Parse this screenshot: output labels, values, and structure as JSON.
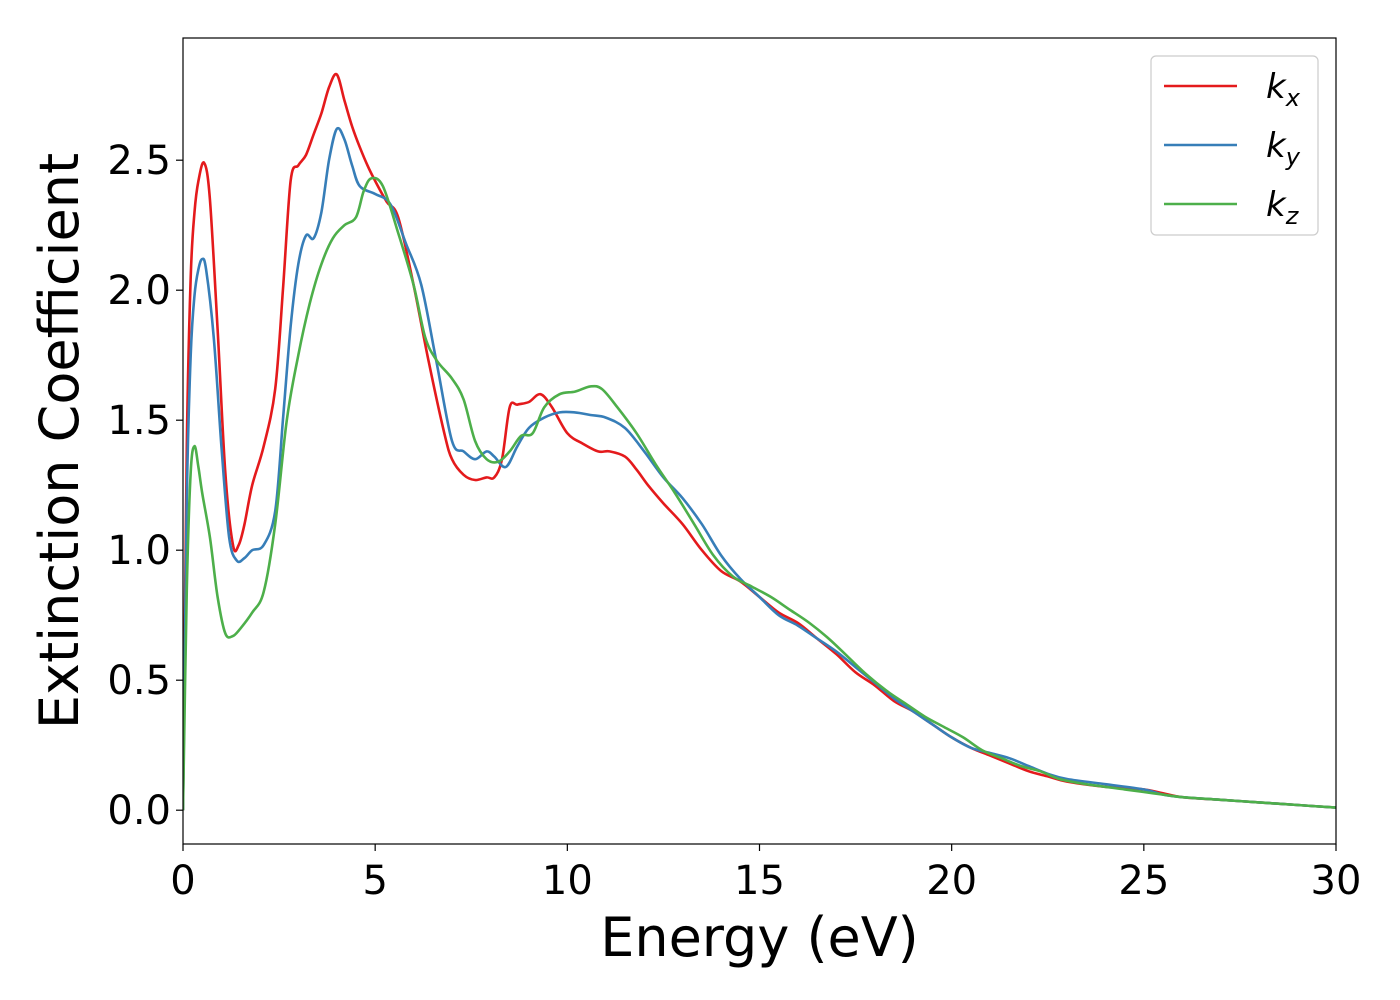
{
  "chart_data": {
    "type": "line",
    "xlabel": "Energy (eV)",
    "ylabel": "Extinction Coefficient",
    "xlim": [
      0,
      30
    ],
    "ylim": [
      -0.13,
      2.97
    ],
    "xticks": [
      0,
      5,
      10,
      15,
      20,
      25,
      30
    ],
    "xtick_labels": [
      "0",
      "5",
      "10",
      "15",
      "20",
      "25",
      "30"
    ],
    "yticks": [
      0.0,
      0.5,
      1.0,
      1.5,
      2.0,
      2.5
    ],
    "ytick_labels": [
      "0.0",
      "0.5",
      "1.0",
      "1.5",
      "2.0",
      "2.5"
    ],
    "grid": false,
    "legend": {
      "position": "top-right"
    },
    "series": [
      {
        "name": "k",
        "name_sub": "x",
        "color": "#e41a1c",
        "x": [
          0,
          0.1,
          0.2,
          0.3,
          0.4,
          0.55,
          0.7,
          0.9,
          1.1,
          1.3,
          1.45,
          1.6,
          1.8,
          2.1,
          2.4,
          2.6,
          2.8,
          3.0,
          3.2,
          3.4,
          3.6,
          3.8,
          4.0,
          4.2,
          4.4,
          4.6,
          4.8,
          5.0,
          5.3,
          5.6,
          6.0,
          6.4,
          6.8,
          7.0,
          7.3,
          7.6,
          7.9,
          8.1,
          8.3,
          8.5,
          8.7,
          9.0,
          9.3,
          9.6,
          10.0,
          10.4,
          10.8,
          11.1,
          11.5,
          11.8,
          12.1,
          12.5,
          13.0,
          13.5,
          14.0,
          14.5,
          15.0,
          15.5,
          16.0,
          16.5,
          17.0,
          17.5,
          18.0,
          18.5,
          19.0,
          19.5,
          20.0,
          20.5,
          21.0,
          21.5,
          22.0,
          22.5,
          23.0,
          24.0,
          25.0,
          25.5,
          26.0,
          27.0,
          28.0,
          29.0,
          30.0
        ],
        "values": [
          0.0,
          1.4,
          2.05,
          2.3,
          2.42,
          2.49,
          2.35,
          1.85,
          1.3,
          1.02,
          1.02,
          1.1,
          1.25,
          1.4,
          1.62,
          2.0,
          2.42,
          2.48,
          2.52,
          2.6,
          2.68,
          2.78,
          2.83,
          2.73,
          2.63,
          2.55,
          2.48,
          2.42,
          2.34,
          2.28,
          2.02,
          1.72,
          1.45,
          1.35,
          1.29,
          1.27,
          1.28,
          1.28,
          1.35,
          1.55,
          1.56,
          1.57,
          1.6,
          1.55,
          1.45,
          1.41,
          1.38,
          1.38,
          1.36,
          1.31,
          1.25,
          1.18,
          1.1,
          1.0,
          0.92,
          0.88,
          0.82,
          0.76,
          0.72,
          0.66,
          0.6,
          0.53,
          0.48,
          0.42,
          0.38,
          0.33,
          0.28,
          0.24,
          0.21,
          0.18,
          0.15,
          0.13,
          0.11,
          0.09,
          0.08,
          0.065,
          0.05,
          0.04,
          0.03,
          0.02,
          0.01
        ]
      },
      {
        "name": "k",
        "name_sub": "y",
        "color": "#377eb8",
        "x": [
          0,
          0.1,
          0.2,
          0.3,
          0.4,
          0.5,
          0.6,
          0.8,
          1.0,
          1.2,
          1.4,
          1.6,
          1.8,
          2.1,
          2.4,
          2.6,
          2.8,
          3.0,
          3.2,
          3.4,
          3.6,
          3.8,
          4.0,
          4.2,
          4.4,
          4.6,
          5.0,
          5.4,
          5.8,
          6.2,
          6.6,
          7.0,
          7.3,
          7.6,
          7.9,
          8.1,
          8.4,
          8.7,
          9.0,
          9.4,
          9.8,
          10.2,
          10.6,
          11.0,
          11.5,
          12.0,
          12.5,
          13.0,
          13.5,
          14.0,
          14.5,
          15.0,
          15.5,
          16.0,
          16.5,
          17.0,
          17.5,
          18.0,
          18.5,
          19.0,
          19.5,
          20.0,
          20.5,
          21.0,
          21.5,
          22.0,
          22.5,
          23.0,
          24.0,
          25.0,
          25.5,
          26.0,
          27.0,
          28.0,
          29.0,
          30.0
        ],
        "values": [
          0.0,
          1.2,
          1.75,
          1.98,
          2.08,
          2.12,
          2.08,
          1.82,
          1.4,
          1.05,
          0.96,
          0.97,
          1.0,
          1.02,
          1.15,
          1.5,
          1.86,
          2.1,
          2.21,
          2.2,
          2.3,
          2.5,
          2.62,
          2.58,
          2.48,
          2.4,
          2.37,
          2.33,
          2.18,
          2.02,
          1.72,
          1.42,
          1.38,
          1.35,
          1.38,
          1.36,
          1.32,
          1.4,
          1.47,
          1.51,
          1.53,
          1.53,
          1.52,
          1.51,
          1.47,
          1.38,
          1.28,
          1.2,
          1.1,
          0.98,
          0.89,
          0.82,
          0.75,
          0.71,
          0.66,
          0.61,
          0.55,
          0.49,
          0.43,
          0.38,
          0.33,
          0.28,
          0.24,
          0.22,
          0.2,
          0.17,
          0.14,
          0.12,
          0.1,
          0.08,
          0.06,
          0.05,
          0.04,
          0.03,
          0.02,
          0.01
        ]
      },
      {
        "name": "k",
        "name_sub": "z",
        "color": "#4daf4a",
        "x": [
          0,
          0.1,
          0.2,
          0.3,
          0.4,
          0.5,
          0.7,
          0.9,
          1.1,
          1.3,
          1.5,
          1.8,
          2.1,
          2.4,
          2.7,
          3.0,
          3.3,
          3.6,
          3.9,
          4.2,
          4.5,
          4.7,
          4.9,
          5.2,
          5.6,
          6.0,
          6.3,
          6.6,
          7.0,
          7.3,
          7.6,
          7.9,
          8.2,
          8.5,
          8.8,
          9.1,
          9.4,
          9.8,
          10.2,
          10.6,
          10.9,
          11.3,
          11.8,
          12.3,
          12.8,
          13.3,
          13.8,
          14.3,
          14.8,
          15.3,
          15.8,
          16.3,
          16.8,
          17.3,
          17.8,
          18.3,
          18.8,
          19.3,
          19.8,
          20.3,
          20.8,
          21.3,
          21.8,
          22.3,
          22.8,
          23.5,
          24.5,
          25.0,
          25.5,
          26.0,
          27.0,
          28.0,
          29.0,
          30.0
        ],
        "values": [
          0.0,
          0.85,
          1.3,
          1.4,
          1.32,
          1.22,
          1.05,
          0.82,
          0.68,
          0.67,
          0.7,
          0.76,
          0.84,
          1.1,
          1.5,
          1.75,
          1.95,
          2.1,
          2.2,
          2.25,
          2.28,
          2.38,
          2.43,
          2.4,
          2.22,
          2.02,
          1.82,
          1.73,
          1.66,
          1.58,
          1.42,
          1.35,
          1.34,
          1.38,
          1.44,
          1.45,
          1.55,
          1.6,
          1.61,
          1.63,
          1.62,
          1.55,
          1.45,
          1.33,
          1.22,
          1.1,
          0.98,
          0.9,
          0.86,
          0.82,
          0.77,
          0.72,
          0.66,
          0.59,
          0.52,
          0.46,
          0.41,
          0.36,
          0.32,
          0.28,
          0.23,
          0.2,
          0.17,
          0.15,
          0.12,
          0.1,
          0.08,
          0.07,
          0.06,
          0.05,
          0.04,
          0.03,
          0.02,
          0.01
        ]
      }
    ]
  }
}
